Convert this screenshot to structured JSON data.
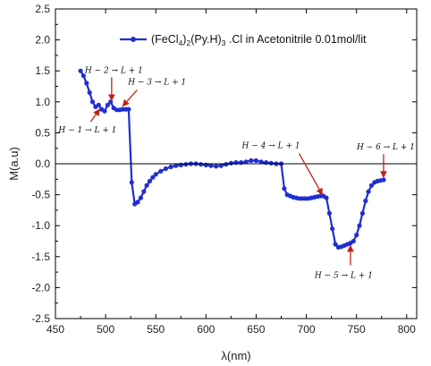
{
  "chart_data": {
    "type": "line",
    "title": "",
    "xlabel": "λ(nm)",
    "ylabel": "M(a.u)",
    "xlim": [
      450,
      810
    ],
    "ylim": [
      -2.5,
      2.5
    ],
    "x_ticks": [
      450,
      500,
      550,
      600,
      650,
      700,
      750,
      800
    ],
    "y_ticks": [
      2.5,
      2.0,
      1.5,
      1.0,
      0.5,
      0.0,
      -0.5,
      -1.0,
      -1.5,
      -2.0,
      -2.5
    ],
    "x_tick_labels": [
      "450",
      "500",
      "550",
      "600",
      "650",
      "700",
      "750",
      "800"
    ],
    "y_tick_labels": [
      "2.5",
      "2.0",
      "1.5",
      "1.0",
      "0.5",
      "0.0",
      "-0.5",
      "-1.0",
      "-1.5",
      "-2.0",
      "-2.5"
    ],
    "zero_line": true,
    "grid": false,
    "legend_position": "top-right",
    "series": [
      {
        "name": "(FeCl4)2(Py.H)3 .Cl in Acetonitrile 0.01mol/lit",
        "legend_parts": [
          {
            "text": "(FeCl",
            "sub": false
          },
          {
            "text": "4",
            "sub": true
          },
          {
            "text": ")",
            "sub": false
          },
          {
            "text": "2",
            "sub": true
          },
          {
            "text": "(Py.H)",
            "sub": false
          },
          {
            "text": "3",
            "sub": true
          },
          {
            "text": " .Cl in Acetonitrile 0.01mol/lit",
            "sub": false
          }
        ],
        "color": "#1f2fd1",
        "x": [
          475,
          478,
          481,
          484,
          487,
          490,
          493,
          496,
          499,
          502,
          505,
          508,
          511,
          514,
          517,
          520,
          523,
          526,
          529,
          532,
          535,
          538,
          541,
          544,
          547,
          550,
          555,
          560,
          565,
          570,
          575,
          580,
          585,
          590,
          595,
          600,
          605,
          610,
          615,
          620,
          625,
          630,
          635,
          640,
          645,
          650,
          655,
          660,
          665,
          670,
          675,
          678,
          681,
          684,
          687,
          690,
          693,
          696,
          699,
          702,
          705,
          708,
          711,
          714,
          717,
          720,
          723,
          726,
          729,
          732,
          735,
          738,
          741,
          744,
          747,
          750,
          753,
          756,
          759,
          762,
          765,
          768,
          771,
          774,
          777
        ],
        "y": [
          1.5,
          1.42,
          1.3,
          1.15,
          1.0,
          0.92,
          0.95,
          0.88,
          0.85,
          0.95,
          1.0,
          0.9,
          0.87,
          0.87,
          0.88,
          0.88,
          0.88,
          -0.3,
          -0.65,
          -0.62,
          -0.55,
          -0.45,
          -0.35,
          -0.28,
          -0.22,
          -0.17,
          -0.12,
          -0.08,
          -0.05,
          -0.03,
          -0.02,
          -0.01,
          0.0,
          0.0,
          -0.01,
          -0.02,
          -0.03,
          -0.04,
          -0.03,
          -0.01,
          0.01,
          0.02,
          0.02,
          0.03,
          0.05,
          0.05,
          0.03,
          0.02,
          0.01,
          0.0,
          0.0,
          -0.4,
          -0.5,
          -0.52,
          -0.54,
          -0.55,
          -0.56,
          -0.56,
          -0.56,
          -0.56,
          -0.55,
          -0.54,
          -0.53,
          -0.52,
          -0.52,
          -0.55,
          -0.8,
          -1.05,
          -1.3,
          -1.35,
          -1.34,
          -1.32,
          -1.3,
          -1.28,
          -1.25,
          -1.15,
          -1.0,
          -0.8,
          -0.6,
          -0.45,
          -0.35,
          -0.3,
          -0.28,
          -0.27,
          -0.26
        ]
      }
    ],
    "annotations": [
      {
        "text": "H − 2 → L + 1",
        "x_data": 506,
        "y_data": 1.02,
        "label_pos": "above"
      },
      {
        "text": "H − 3 → L + 1",
        "x_data": 517,
        "y_data": 0.93,
        "label_pos": "right-above"
      },
      {
        "text": "H − 1 → L + 1",
        "x_data": 494,
        "y_data": 0.88,
        "label_pos": "below-left"
      },
      {
        "text": "H − 4 → L + 1",
        "x_data": 716,
        "y_data": -0.5,
        "label_pos": "above-left"
      },
      {
        "text": "H − 6 → L + 1",
        "x_data": 777,
        "y_data": -0.22,
        "label_pos": "above"
      },
      {
        "text": "H − 5 → L + 1",
        "x_data": 744,
        "y_data": -1.32,
        "label_pos": "below"
      }
    ]
  }
}
